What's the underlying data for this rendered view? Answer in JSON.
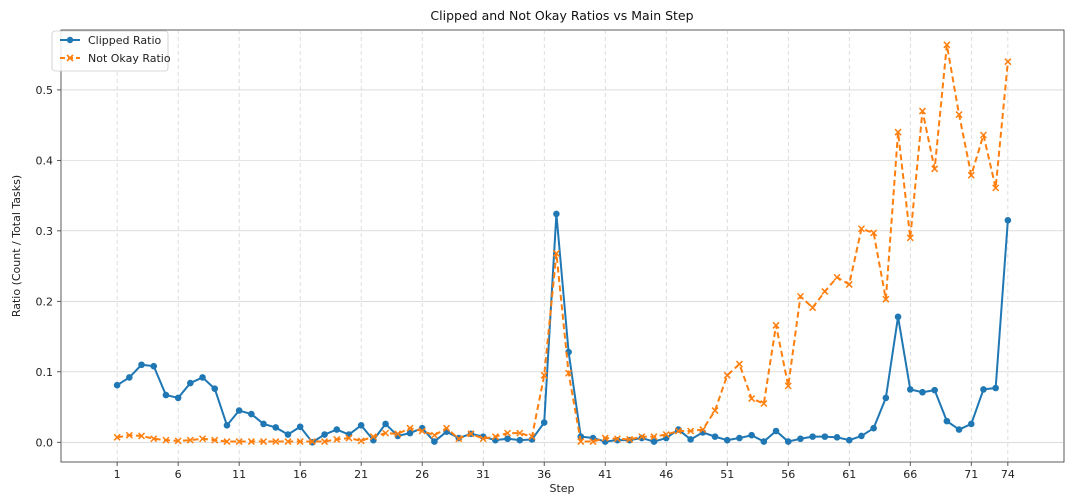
{
  "chart_data": {
    "type": "line",
    "title": "Clipped and Not Okay Ratios vs Main Step",
    "xlabel": "Step",
    "ylabel": "Ratio (Count / Total Tasks)",
    "xlim": [
      -3.6,
      78.6
    ],
    "ylim": [
      -0.028,
      0.585
    ],
    "xticks": [
      1,
      6,
      11,
      16,
      21,
      26,
      31,
      36,
      41,
      46,
      51,
      56,
      61,
      66,
      71,
      74
    ],
    "yticks": [
      0.0,
      0.1,
      0.2,
      0.3,
      0.4,
      0.5
    ],
    "ytick_labels": [
      "0.0",
      "0.1",
      "0.2",
      "0.3",
      "0.4",
      "0.5"
    ],
    "grid": true,
    "legend_position": "top-left",
    "x_start": 1,
    "series": [
      {
        "name": "Clipped Ratio",
        "color": "#1f77b4",
        "marker": "circle",
        "linestyle": "solid",
        "values": [
          0.081,
          0.092,
          0.11,
          0.108,
          0.067,
          0.063,
          0.084,
          0.092,
          0.076,
          0.024,
          0.045,
          0.04,
          0.026,
          0.021,
          0.011,
          0.022,
          0.0,
          0.011,
          0.018,
          0.011,
          0.024,
          0.003,
          0.026,
          0.009,
          0.013,
          0.02,
          0.001,
          0.015,
          0.006,
          0.012,
          0.008,
          0.003,
          0.005,
          0.003,
          0.004,
          0.028,
          0.324,
          0.128,
          0.008,
          0.006,
          0.001,
          0.003,
          0.003,
          0.006,
          0.001,
          0.006,
          0.018,
          0.004,
          0.014,
          0.008,
          0.003,
          0.006,
          0.01,
          0.001,
          0.016,
          0.001,
          0.005,
          0.008,
          0.008,
          0.007,
          0.003,
          0.009,
          0.02,
          0.063,
          0.178,
          0.075,
          0.071,
          0.074,
          0.03,
          0.018,
          0.026,
          0.075,
          0.077,
          0.315
        ]
      },
      {
        "name": "Not Okay Ratio",
        "color": "#ff7f0e",
        "marker": "x",
        "linestyle": "dashed",
        "values": [
          0.007,
          0.01,
          0.009,
          0.005,
          0.003,
          0.002,
          0.003,
          0.005,
          0.003,
          0.001,
          0.001,
          0.001,
          0.001,
          0.001,
          0.001,
          0.001,
          0.001,
          0.001,
          0.004,
          0.006,
          0.002,
          0.008,
          0.013,
          0.012,
          0.02,
          0.016,
          0.01,
          0.02,
          0.005,
          0.012,
          0.005,
          0.008,
          0.013,
          0.013,
          0.008,
          0.095,
          0.268,
          0.098,
          0.001,
          0.001,
          0.006,
          0.005,
          0.004,
          0.008,
          0.008,
          0.011,
          0.016,
          0.016,
          0.018,
          0.045,
          0.095,
          0.111,
          0.062,
          0.055,
          0.166,
          0.08,
          0.207,
          0.191,
          0.214,
          0.234,
          0.224,
          0.303,
          0.297,
          0.203,
          0.44,
          0.29,
          0.47,
          0.388,
          0.564,
          0.465,
          0.379,
          0.436,
          0.361,
          0.54
        ]
      }
    ]
  }
}
